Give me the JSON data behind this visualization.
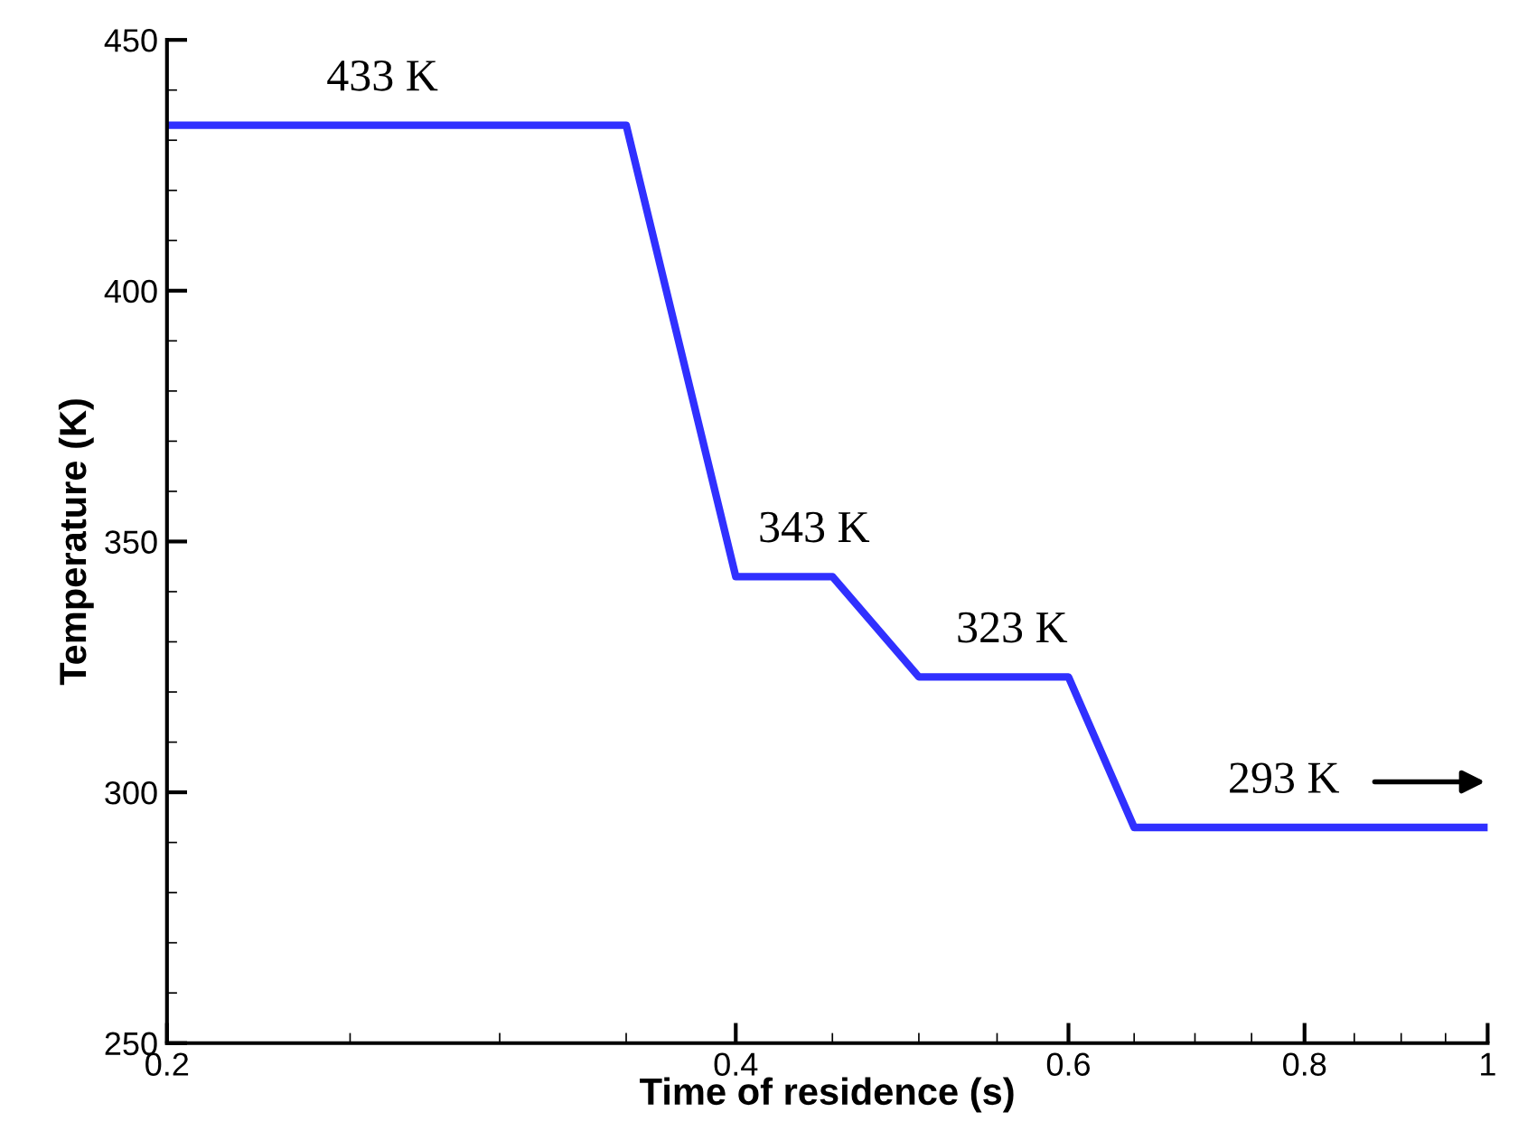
{
  "chart_data": {
    "type": "line",
    "xlabel": "Time of residence (s)",
    "ylabel": "Temperature (K)",
    "log": "x",
    "series": [
      {
        "color": "#3030ff",
        "x": [
          0.2,
          0.35,
          0.4,
          0.45,
          0.5,
          0.6,
          0.65,
          1
        ],
        "values": [
          433,
          433,
          343,
          343,
          323,
          323,
          293,
          293
        ]
      }
    ],
    "xlim": [
      0.2,
      1
    ],
    "xticks": [
      0.2,
      0.4,
      0.6,
      0.8,
      1
    ],
    "ylim": [
      250,
      450
    ],
    "yticks": [
      250,
      300,
      350,
      400,
      450
    ],
    "grid": false,
    "legend": false,
    "marker": "none",
    "line_style": "solid",
    "annotations": [
      {
        "text": "433 K",
        "x": 0.26,
        "y": 433
      },
      {
        "text": "343 K",
        "x": 0.44,
        "y": 343
      },
      {
        "text": "323 K",
        "x": 0.56,
        "y": 323
      },
      {
        "text": "293 K",
        "x": 0.78,
        "y": 293
      }
    ]
  }
}
